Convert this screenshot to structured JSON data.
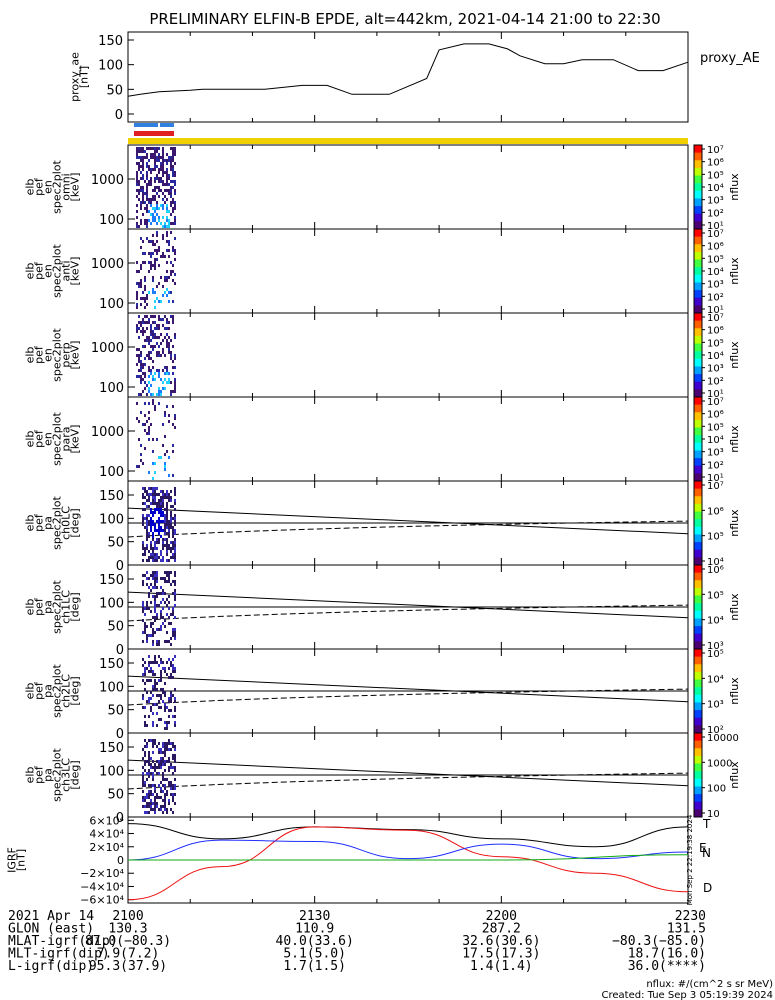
{
  "title": "PRELIMINARY ELFIN-B EPDE, alt=442km, 2021-04-14 21:00 to 22:30",
  "proxy_ae": {
    "ylabel": [
      "proxy_ae",
      "[nT]"
    ],
    "legend": "proxy_AE",
    "yticks": [
      "150",
      "100",
      "50",
      "0"
    ],
    "ylim": [
      0,
      150
    ],
    "t": [
      0,
      2,
      5,
      10,
      12,
      16,
      22,
      28,
      32,
      36,
      42,
      48,
      50,
      54,
      58,
      61,
      63,
      67,
      70,
      73,
      78,
      82,
      86,
      90
    ],
    "values": [
      36,
      40,
      45,
      48,
      50,
      50,
      50,
      58,
      58,
      40,
      40,
      72,
      130,
      142,
      142,
      132,
      118,
      102,
      102,
      110,
      110,
      88,
      88,
      105
    ]
  },
  "spec_panels": [
    {
      "label": [
        "elb",
        "pef",
        "en",
        "spec2plot",
        "omni",
        "[keV]"
      ],
      "yticks": [
        "1000",
        "100"
      ],
      "cbar_ticks": [
        "10⁷",
        "10⁶",
        "10⁵",
        "10⁴",
        "10³",
        "10²",
        "10¹"
      ],
      "cbar_label": "nflux"
    },
    {
      "label": [
        "elb",
        "pef",
        "en",
        "spec2plot",
        "anti",
        "[keV]"
      ],
      "yticks": [
        "1000",
        "100"
      ],
      "cbar_ticks": [
        "10⁷",
        "10⁶",
        "10⁵",
        "10⁴",
        "10³",
        "10²",
        "10¹"
      ],
      "cbar_label": "nflux"
    },
    {
      "label": [
        "elb",
        "pef",
        "en",
        "spec2plot",
        "perp",
        "[keV]"
      ],
      "yticks": [
        "1000",
        "100"
      ],
      "cbar_ticks": [
        "10⁷",
        "10⁶",
        "10⁵",
        "10⁴",
        "10³",
        "10²",
        "10¹"
      ],
      "cbar_label": "nflux"
    },
    {
      "label": [
        "elb",
        "pef",
        "en",
        "spec2plot",
        "para",
        "[keV]"
      ],
      "yticks": [
        "1000",
        "100"
      ],
      "cbar_ticks": [
        "10⁷",
        "10⁶",
        "10⁵",
        "10⁴",
        "10³",
        "10²",
        "10¹"
      ],
      "cbar_label": "nflux"
    }
  ],
  "pa_panels": [
    {
      "label": [
        "elb",
        "pef",
        "pa",
        "spec2plot",
        "ch0LC",
        "[deg]"
      ],
      "yticks": [
        "150",
        "100",
        "50",
        "0"
      ],
      "cbar_ticks": [
        "10⁷",
        "10⁶",
        "10⁵",
        "10⁴"
      ],
      "cbar_label": "nflux"
    },
    {
      "label": [
        "elb",
        "pef",
        "pa",
        "spec2plot",
        "ch1LC",
        "[deg]"
      ],
      "yticks": [
        "150",
        "100",
        "50",
        "0"
      ],
      "cbar_ticks": [
        "10⁶",
        "10⁵",
        "10⁴",
        "10³"
      ],
      "cbar_label": "nflux"
    },
    {
      "label": [
        "elb",
        "pef",
        "pa",
        "spec2plot",
        "ch2LC",
        "[deg]"
      ],
      "yticks": [
        "150",
        "100",
        "50",
        "0"
      ],
      "cbar_ticks": [
        "10⁵",
        "10⁴",
        "10³",
        "10²"
      ],
      "cbar_label": "nflux"
    },
    {
      "label": [
        "elb",
        "pef",
        "pa",
        "spec2plot",
        "ch3LC",
        "[deg]"
      ],
      "yticks": [
        "150",
        "100",
        "50",
        "0"
      ],
      "cbar_ticks": [
        "10000",
        "1000",
        "100",
        "10"
      ],
      "cbar_label": "nflux"
    }
  ],
  "igrf": {
    "ylabel": [
      "IGRF",
      "[nT]"
    ],
    "yticks": [
      "6×10⁴",
      "4×10⁴",
      "2×10⁴",
      "0",
      "−2×10⁴",
      "−4×10⁴",
      "−6×10⁴"
    ],
    "legend": [
      "T",
      "E",
      "N",
      "D"
    ],
    "created_side": "Mon Sep  2 22:19:38 2024"
  },
  "chart_data": {
    "type": "line",
    "title": "PRELIMINARY ELFIN-B EPDE, alt=442km, 2021-04-14 21:00 to 22:30",
    "x_ticks": [
      "2100",
      "2130",
      "2200",
      "2230"
    ],
    "series": [
      {
        "name": "proxy_AE",
        "x": [
          0,
          10,
          22,
          28,
          36,
          42,
          54,
          58,
          67,
          73,
          82,
          90
        ],
        "y": [
          36,
          48,
          50,
          58,
          40,
          40,
          142,
          142,
          102,
          110,
          88,
          105
        ]
      },
      {
        "name": "T",
        "x": [
          0,
          15,
          30,
          45,
          60,
          75,
          90
        ],
        "y": [
          55000,
          32000,
          50000,
          46000,
          32000,
          20000,
          50000
        ]
      },
      {
        "name": "D",
        "x": [
          0,
          15,
          30,
          45,
          60,
          75,
          90
        ],
        "y": [
          -60000,
          -10000,
          50000,
          45000,
          5000,
          -20000,
          -48000
        ]
      },
      {
        "name": "N",
        "x": [
          0,
          15,
          30,
          45,
          60,
          75,
          90
        ],
        "y": [
          0,
          30000,
          28000,
          2000,
          24000,
          2000,
          12000
        ]
      },
      {
        "name": "E",
        "x": [
          0,
          30,
          60,
          90
        ],
        "y": [
          0,
          0,
          0,
          8000
        ]
      }
    ]
  },
  "footer": {
    "rows": [
      {
        "label": "2021 Apr 14",
        "values": [
          "2100",
          "2130",
          "2200",
          "2230"
        ]
      },
      {
        "label": "GLON (east)",
        "values": [
          "130.3",
          "110.9",
          "287.2",
          "131.5"
        ]
      },
      {
        "label": "MLAT-igrf(dip)",
        "values": [
          "87.0(−80.3)",
          "40.0(33.6)",
          "32.6(30.6)",
          "−80.3(−85.0)"
        ]
      },
      {
        "label": "MLT-igrf(dip)",
        "values": [
          "7.9(7.2)",
          "5.1(5.0)",
          "17.5(17.3)",
          "18.7(16.0)"
        ]
      },
      {
        "label": "L-igrf(dip)",
        "values": [
          "95.3(37.9)",
          "1.7(1.5)",
          "1.4(1.4)",
          "36.0(****)"
        ]
      }
    ],
    "units": "nflux: #/(cm^2 s sr MeV)",
    "created": "Created: Tue Sep  3 05:19:39 2024"
  },
  "colors": {
    "spec_pink": "#cc3399",
    "yellow_bar": "#f0d000",
    "blue_bar": "#3080e0",
    "red_bar": "#e02020",
    "blue": "#2030ff",
    "red": "#ee1111",
    "green": "#11aa11",
    "black": "#000000"
  }
}
